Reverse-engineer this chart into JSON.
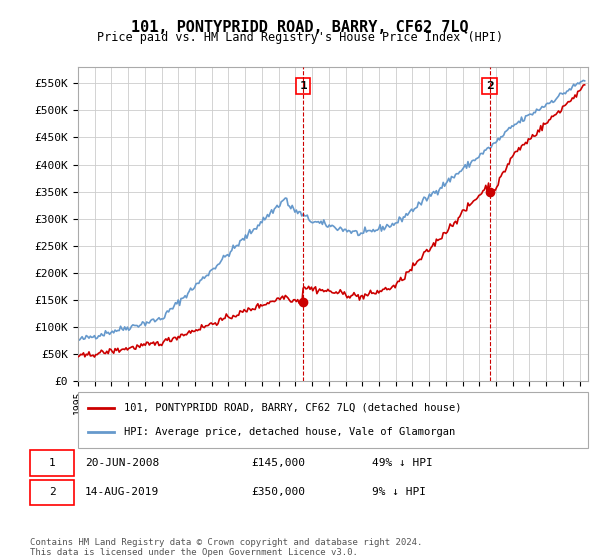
{
  "title": "101, PONTYPRIDD ROAD, BARRY, CF62 7LQ",
  "subtitle": "Price paid vs. HM Land Registry's House Price Index (HPI)",
  "ylabel_ticks": [
    "£0",
    "£50K",
    "£100K",
    "£150K",
    "£200K",
    "£250K",
    "£300K",
    "£350K",
    "£400K",
    "£450K",
    "£500K",
    "£550K"
  ],
  "ytick_values": [
    0,
    50000,
    100000,
    150000,
    200000,
    250000,
    300000,
    350000,
    400000,
    450000,
    500000,
    550000
  ],
  "ylim": [
    0,
    580000
  ],
  "xlim_start": 1995.0,
  "xlim_end": 2025.5,
  "hpi_color": "#6699cc",
  "price_color": "#cc0000",
  "annotation_color": "#cc0000",
  "bg_color": "#ffffff",
  "grid_color": "#cccccc",
  "legend_label_price": "101, PONTYPRIDD ROAD, BARRY, CF62 7LQ (detached house)",
  "legend_label_hpi": "HPI: Average price, detached house, Vale of Glamorgan",
  "point1_date": "20-JUN-2008",
  "point1_price": 145000,
  "point1_label": "1",
  "point1_x": 2008.47,
  "point2_date": "14-AUG-2019",
  "point2_price": 350000,
  "point2_label": "2",
  "point2_x": 2019.62,
  "note1": "1    20-JUN-2008        £145,000        49% ↓ HPI",
  "note2": "2    14-AUG-2019        £350,000          9% ↓ HPI",
  "footer": "Contains HM Land Registry data © Crown copyright and database right 2024.\nThis data is licensed under the Open Government Licence v3.0."
}
